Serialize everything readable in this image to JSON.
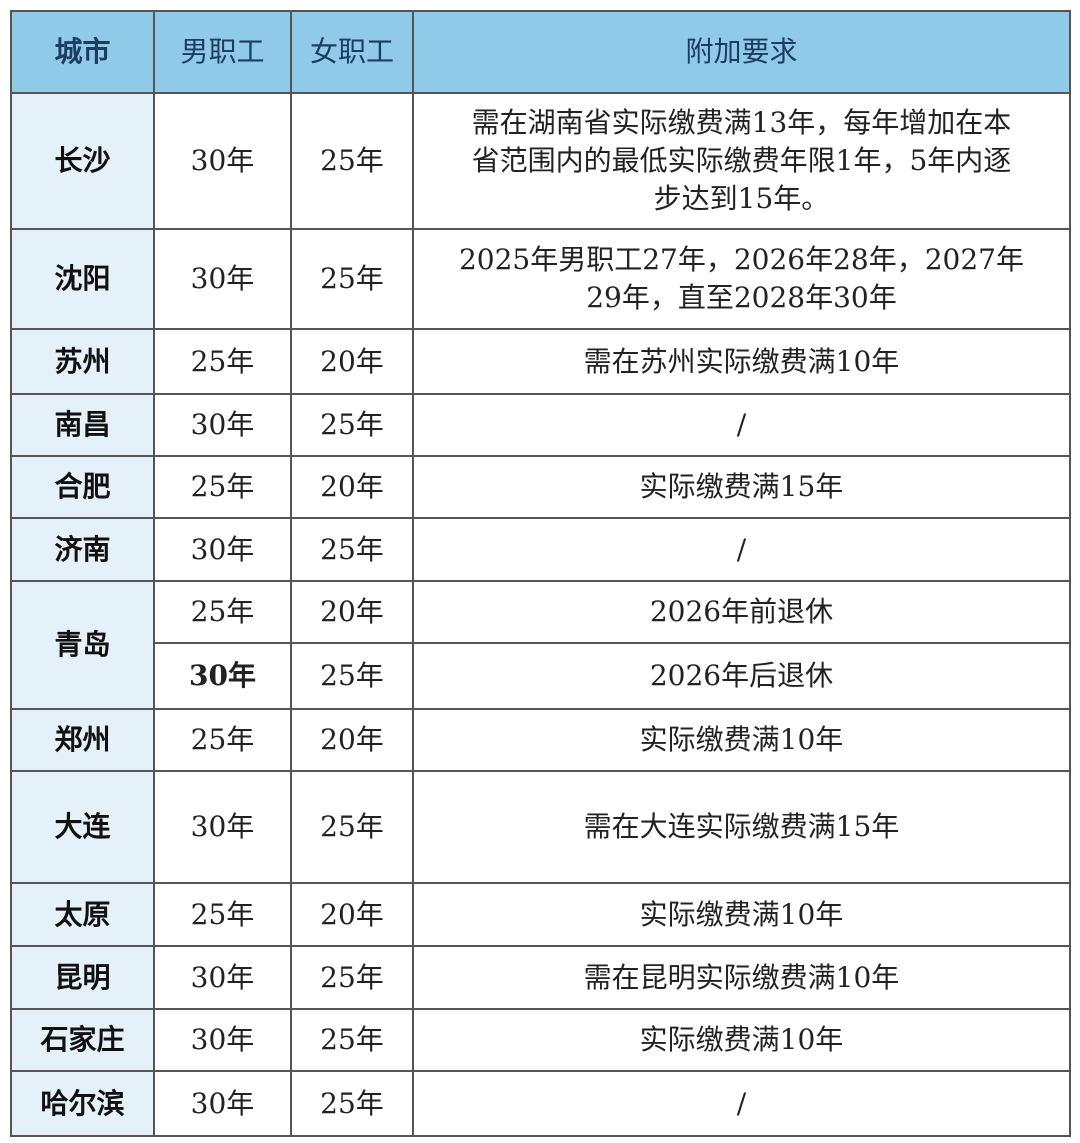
{
  "header": {
    "city": "城市",
    "male": "男职工",
    "female": "女职工",
    "extra": "附加要求"
  },
  "header_color": "#8fcbe8",
  "rows": [
    {
      "city": "长沙",
      "entries": [
        {
          "male": "30年",
          "female": "25年",
          "extra": "需在湖南省实际缴费满13年，每年增加在本省范围内的最低实际缴费年限1年，5年内逐步达到15年。"
        }
      ]
    },
    {
      "city": "沈阳",
      "entries": [
        {
          "male": "30年",
          "female": "25年",
          "extra": "2025年男职工27年，2026年28年，2027年29年，直至2028年30年"
        }
      ]
    },
    {
      "city": "苏州",
      "entries": [
        {
          "male": "25年",
          "female": "20年",
          "extra": "需在苏州实际缴费满10年"
        }
      ]
    },
    {
      "city": "南昌",
      "entries": [
        {
          "male": "30年",
          "female": "25年",
          "extra": "/"
        }
      ]
    },
    {
      "city": "合肥",
      "entries": [
        {
          "male": "25年",
          "female": "20年",
          "extra": "实际缴费满15年"
        }
      ]
    },
    {
      "city": "济南",
      "entries": [
        {
          "male": "30年",
          "female": "25年",
          "extra": "/"
        }
      ]
    },
    {
      "city": "青岛",
      "entries": [
        {
          "male": "25年",
          "female": "20年",
          "extra": "2026年前退休"
        },
        {
          "male": "30年",
          "female": "25年",
          "extra": "2026年后退休",
          "bold_male": true
        }
      ]
    },
    {
      "city": "郑州",
      "entries": [
        {
          "male": "25年",
          "female": "20年",
          "extra": "实际缴费满10年"
        }
      ]
    },
    {
      "city": "大连",
      "entries": [
        {
          "male": "30年",
          "female": "25年",
          "extra": "需在大连实际缴费满15年"
        }
      ]
    },
    {
      "city": "太原",
      "entries": [
        {
          "male": "25年",
          "female": "20年",
          "extra": "实际缴费满10年"
        }
      ]
    },
    {
      "city": "昆明",
      "entries": [
        {
          "male": "30年",
          "female": "25年",
          "extra": "需在昆明实际缴费满10年"
        }
      ]
    },
    {
      "city": "石家庄",
      "entries": [
        {
          "male": "30年",
          "female": "25年",
          "extra": "实际缴费满10年"
        }
      ]
    },
    {
      "city": "哈尔滨",
      "entries": [
        {
          "male": "30年",
          "female": "25年",
          "extra": "/"
        }
      ]
    }
  ]
}
